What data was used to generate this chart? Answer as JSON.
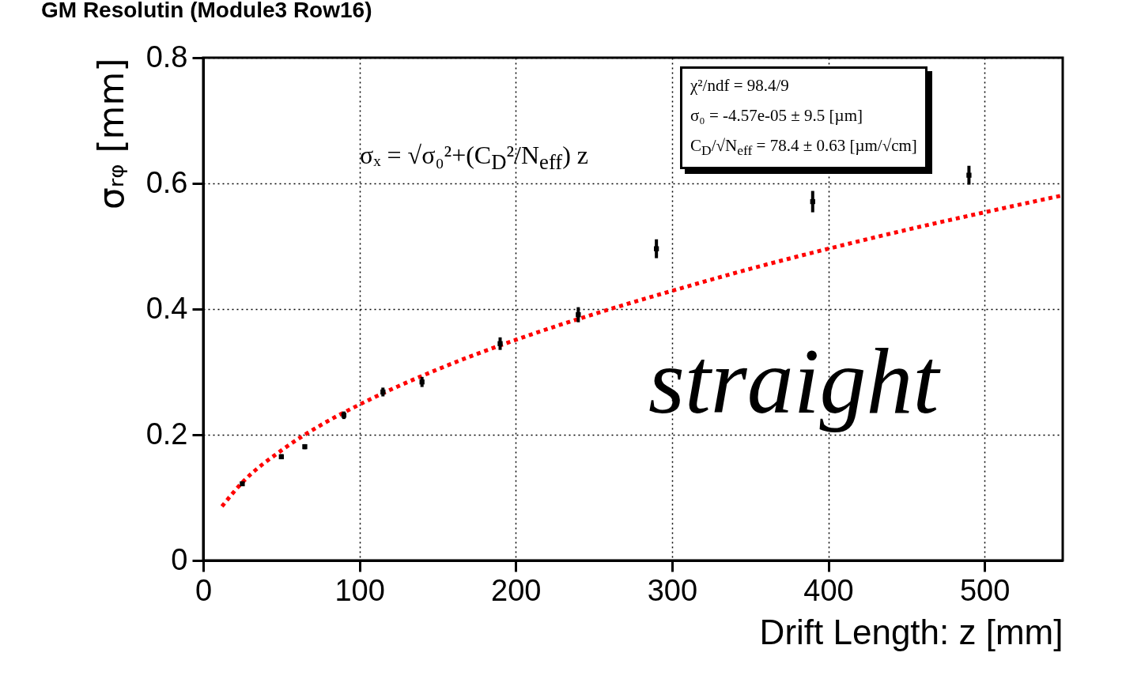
{
  "chart_data": {
    "type": "scatter",
    "title": "GM Resolutin (Module3 Row16)",
    "xlabel": "Drift Length: z [mm]",
    "ylabel": "σᵣᵩ [mm]",
    "xlim": [
      0,
      550
    ],
    "xticks": [
      0,
      100,
      200,
      300,
      400,
      500
    ],
    "ylim": [
      0,
      0.8
    ],
    "yticks": [
      0,
      0.2,
      0.4,
      0.6,
      0.8
    ],
    "grid": true,
    "annotations": [
      "σₓ = √σ₀²+(C$_{D}$²/N$_{eff}$) z",
      "χ²/ndf = 98.4/9",
      "σ₀ = -4.57e-05 ±  9.5 [µm]",
      "C$_{D}$/√N$_{eff}$ =  78.4 ± 0.63 [µm/√cm]",
      "straight"
    ],
    "series": [
      {
        "color": "#000000",
        "marker": "square",
        "x": [
          25,
          50,
          65,
          90,
          115,
          140,
          190,
          240,
          290,
          390,
          490
        ],
        "values": [
          0.122,
          0.165,
          0.181,
          0.231,
          0.268,
          0.284,
          0.345,
          0.391,
          0.496,
          0.571,
          0.613
        ],
        "errors": [
          0.003,
          0.004,
          0.004,
          0.006,
          0.007,
          0.008,
          0.01,
          0.012,
          0.015,
          0.017,
          0.015
        ]
      },
      {
        "type": "line",
        "color": "#ff0000",
        "line_style": "dotted",
        "x": [
          12,
          25,
          50,
          75,
          100,
          150,
          200,
          250,
          300,
          350,
          400,
          450,
          500,
          550
        ],
        "values": [
          0.086,
          0.124,
          0.175,
          0.215,
          0.248,
          0.304,
          0.351,
          0.392,
          0.429,
          0.464,
          0.496,
          0.526,
          0.554,
          0.581
        ]
      }
    ]
  }
}
